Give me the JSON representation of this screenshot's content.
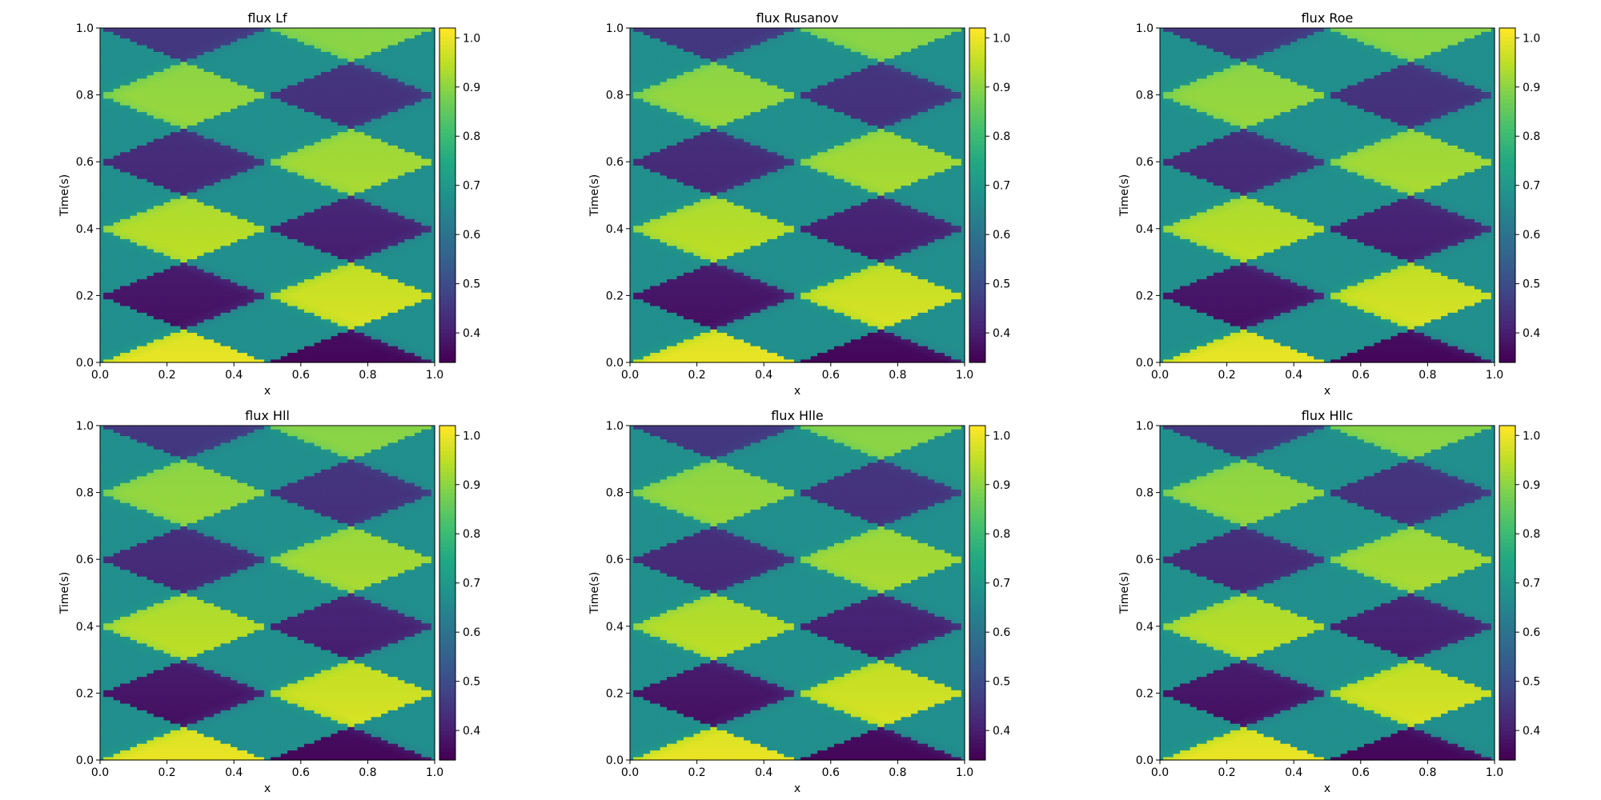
{
  "figure": {
    "background": "#ffffff"
  },
  "chart_data": [
    {
      "type": "heatmap",
      "title": "flux Lf",
      "xlabel": "x",
      "ylabel": "Time(s)",
      "xlim": [
        0,
        1
      ],
      "ylim": [
        0,
        1
      ],
      "xticks": [
        "0.0",
        "0.2",
        "0.4",
        "0.6",
        "0.8",
        "1.0"
      ],
      "yticks": [
        "0.0",
        "0.2",
        "0.4",
        "0.6",
        "0.8",
        "1.0"
      ],
      "colormap": "viridis",
      "clim": [
        0.34,
        1.02
      ],
      "colorbar_ticks": [
        "0.4",
        "0.5",
        "0.6",
        "0.7",
        "0.8",
        "0.9",
        "1.0"
      ],
      "initial_condition": {
        "x_split": 0.5,
        "left_value": 1.0,
        "right_value": 0.35
      },
      "wave_period": 0.2
    },
    {
      "type": "heatmap",
      "title": "flux Rusanov",
      "xlabel": "x",
      "ylabel": "Time(s)",
      "xlim": [
        0,
        1
      ],
      "ylim": [
        0,
        1
      ],
      "xticks": [
        "0.0",
        "0.2",
        "0.4",
        "0.6",
        "0.8",
        "1.0"
      ],
      "yticks": [
        "0.0",
        "0.2",
        "0.4",
        "0.6",
        "0.8",
        "1.0"
      ],
      "colormap": "viridis",
      "clim": [
        0.34,
        1.02
      ],
      "colorbar_ticks": [
        "0.4",
        "0.5",
        "0.6",
        "0.7",
        "0.8",
        "0.9",
        "1.0"
      ],
      "initial_condition": {
        "x_split": 0.5,
        "left_value": 1.0,
        "right_value": 0.35
      },
      "wave_period": 0.2
    },
    {
      "type": "heatmap",
      "title": "flux Roe",
      "xlabel": "x",
      "ylabel": "Time(s)",
      "xlim": [
        0,
        1
      ],
      "ylim": [
        0,
        1
      ],
      "xticks": [
        "0.0",
        "0.2",
        "0.4",
        "0.6",
        "0.8",
        "1.0"
      ],
      "yticks": [
        "0.0",
        "0.2",
        "0.4",
        "0.6",
        "0.8",
        "1.0"
      ],
      "colormap": "viridis",
      "clim": [
        0.34,
        1.02
      ],
      "colorbar_ticks": [
        "0.4",
        "0.5",
        "0.6",
        "0.7",
        "0.8",
        "0.9",
        "1.0"
      ],
      "initial_condition": {
        "x_split": 0.5,
        "left_value": 1.0,
        "right_value": 0.35
      },
      "wave_period": 0.2
    },
    {
      "type": "heatmap",
      "title": "flux Hll",
      "xlabel": "x",
      "ylabel": "Time(s)",
      "xlim": [
        0,
        1
      ],
      "ylim": [
        0,
        1
      ],
      "xticks": [
        "0.0",
        "0.2",
        "0.4",
        "0.6",
        "0.8",
        "1.0"
      ],
      "yticks": [
        "0.0",
        "0.2",
        "0.4",
        "0.6",
        "0.8",
        "1.0"
      ],
      "colormap": "viridis",
      "clim": [
        0.34,
        1.02
      ],
      "colorbar_ticks": [
        "0.4",
        "0.5",
        "0.6",
        "0.7",
        "0.8",
        "0.9",
        "1.0"
      ],
      "initial_condition": {
        "x_split": 0.5,
        "left_value": 1.0,
        "right_value": 0.35
      },
      "wave_period": 0.2
    },
    {
      "type": "heatmap",
      "title": "flux Hlle",
      "xlabel": "x",
      "ylabel": "Time(s)",
      "xlim": [
        0,
        1
      ],
      "ylim": [
        0,
        1
      ],
      "xticks": [
        "0.0",
        "0.2",
        "0.4",
        "0.6",
        "0.8",
        "1.0"
      ],
      "yticks": [
        "0.0",
        "0.2",
        "0.4",
        "0.6",
        "0.8",
        "1.0"
      ],
      "colormap": "viridis",
      "clim": [
        0.34,
        1.02
      ],
      "colorbar_ticks": [
        "0.4",
        "0.5",
        "0.6",
        "0.7",
        "0.8",
        "0.9",
        "1.0"
      ],
      "initial_condition": {
        "x_split": 0.5,
        "left_value": 1.0,
        "right_value": 0.35
      },
      "wave_period": 0.2
    },
    {
      "type": "heatmap",
      "title": "flux Hllc",
      "xlabel": "x",
      "ylabel": "Time(s)",
      "xlim": [
        0,
        1
      ],
      "ylim": [
        0,
        1
      ],
      "xticks": [
        "0.0",
        "0.2",
        "0.4",
        "0.6",
        "0.8",
        "1.0"
      ],
      "yticks": [
        "0.0",
        "0.2",
        "0.4",
        "0.6",
        "0.8",
        "1.0"
      ],
      "colormap": "viridis",
      "clim": [
        0.34,
        1.02
      ],
      "colorbar_ticks": [
        "0.4",
        "0.5",
        "0.6",
        "0.7",
        "0.8",
        "0.9",
        "1.0"
      ],
      "initial_condition": {
        "x_split": 0.5,
        "left_value": 1.0,
        "right_value": 0.35
      },
      "wave_period": 0.2
    }
  ]
}
